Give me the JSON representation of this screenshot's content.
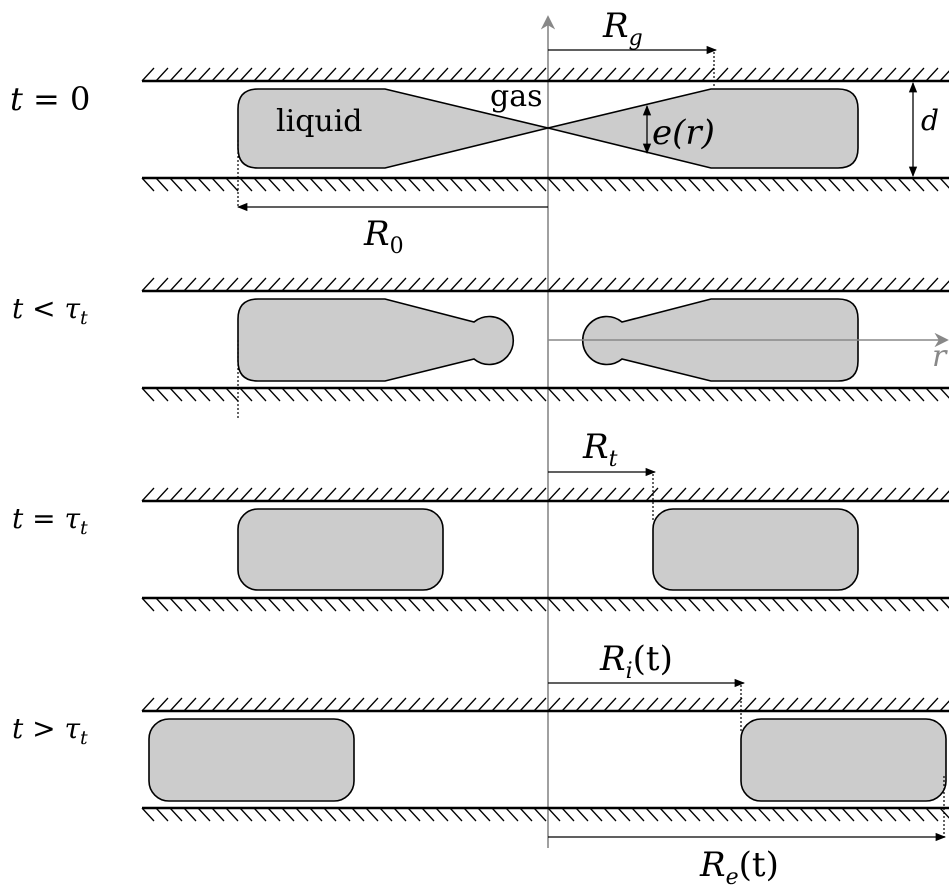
{
  "panels": [
    {
      "time_label_var": "t",
      "time_label_rel": "= 0"
    },
    {
      "time_label_var": "t",
      "time_label_rel": "< τ",
      "time_label_sub": "t"
    },
    {
      "time_label_var": "t",
      "time_label_rel": "= τ",
      "time_label_sub": "t"
    },
    {
      "time_label_var": "t",
      "time_label_rel": "> τ",
      "time_label_sub": "t"
    }
  ],
  "labels": {
    "liquid": "liquid",
    "gas": "gas",
    "thickness": "e(r)",
    "gap": "d",
    "r_axis": "r",
    "R_g_main": "R",
    "R_g_sub": "g",
    "R_0_main": "R",
    "R_0_sub": "0",
    "R_t_main": "R",
    "R_t_sub": "t",
    "R_i_main": "R",
    "R_i_sub": "i",
    "R_i_tail": "(t)",
    "R_e_main": "R",
    "R_e_sub": "e",
    "R_e_tail": "(t)"
  },
  "colors": {
    "liquid_fill": "#cccccc",
    "axis": "#888888",
    "ink": "#000000"
  }
}
